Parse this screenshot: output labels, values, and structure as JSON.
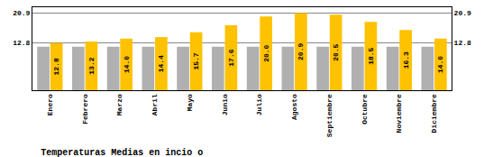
{
  "chart_data": {
    "type": "bar",
    "title": "Temperaturas Medias en incio o",
    "categories": [
      "Enero",
      "Febrero",
      "Marzo",
      "Abril",
      "Mayo",
      "Junio",
      "Julio",
      "Agosto",
      "Septiembre",
      "Octubre",
      "Noviembre",
      "Diciembre"
    ],
    "series": [
      {
        "color": "#B0B0B0",
        "values": [
          11.8,
          11.8,
          11.8,
          11.8,
          11.8,
          11.8,
          11.8,
          11.8,
          11.8,
          11.8,
          11.8,
          11.8
        ]
      },
      {
        "color": "#FFC200",
        "values": [
          12.8,
          13.2,
          14.0,
          14.4,
          15.7,
          17.6,
          20.0,
          20.9,
          20.5,
          18.5,
          16.3,
          14.0
        ],
        "data_labels": true,
        "value_labels": [
          "12.8",
          "13.2",
          "14.0",
          "14.4",
          "15.7",
          "17.6",
          "20.0",
          "20.9",
          "20.5",
          "18.5",
          "16.3",
          "14.0"
        ]
      }
    ],
    "ylim": [
      0,
      22.5
    ],
    "yticks": [
      12.8,
      20.9
    ],
    "y2lim": [
      0,
      22.5
    ],
    "y2ticks": [
      12.8,
      20.9
    ],
    "grid": true
  }
}
